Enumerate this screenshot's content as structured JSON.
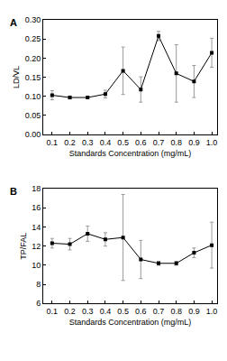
{
  "chart_data": [
    {
      "type": "line",
      "title": "A",
      "xlabel": "Standards Concentration (mg/mL)",
      "ylabel": "LD/VL",
      "x": [
        0.1,
        0.2,
        0.3,
        0.4,
        0.5,
        0.6,
        0.7,
        0.8,
        0.9,
        1.0
      ],
      "values": [
        0.103,
        0.097,
        0.097,
        0.106,
        0.167,
        0.118,
        0.258,
        0.16,
        0.139,
        0.214
      ],
      "error": [
        0.012,
        0.004,
        0.003,
        0.01,
        0.062,
        0.033,
        0.012,
        0.075,
        0.042,
        0.038
      ],
      "color": "#000000",
      "marker": "square",
      "xlim": [
        0.05,
        1.03
      ],
      "xticks": [
        0.1,
        0.2,
        0.3,
        0.4,
        0.5,
        0.6,
        0.7,
        0.8,
        0.9,
        {
          "value": 1.0,
          "label": "1.0"
        }
      ],
      "ylim": [
        0,
        0.3
      ],
      "yticks": [
        {
          "value": 0,
          "label": "0.00"
        },
        0.05,
        {
          "value": 0.1,
          "label": "0.10"
        },
        0.15,
        {
          "value": 0.2,
          "label": "0.20"
        },
        0.25,
        {
          "value": 0.3,
          "label": "0.30"
        }
      ]
    },
    {
      "type": "line",
      "title": "B",
      "xlabel": "Standards Concentration (mg/mL)",
      "ylabel": "TP/FAL",
      "x": [
        0.1,
        0.2,
        0.3,
        0.4,
        0.5,
        0.6,
        0.7,
        0.8,
        0.9,
        1.0
      ],
      "values": [
        12.3,
        12.2,
        13.3,
        12.7,
        12.9,
        10.6,
        10.2,
        10.2,
        11.3,
        12.1
      ],
      "error": [
        0.5,
        0.6,
        0.8,
        0.7,
        4.5,
        2.0,
        0.2,
        0.2,
        0.5,
        2.4
      ],
      "color": "#000000",
      "marker": "square",
      "xlim": [
        0.05,
        1.03
      ],
      "xticks": [
        0.1,
        0.2,
        0.3,
        0.4,
        0.5,
        0.6,
        0.7,
        0.8,
        0.9,
        {
          "value": 1.0,
          "label": "1.0"
        }
      ],
      "ylim": [
        6,
        18
      ],
      "yticks": [
        6,
        8,
        10,
        12,
        14,
        16,
        18
      ]
    }
  ]
}
